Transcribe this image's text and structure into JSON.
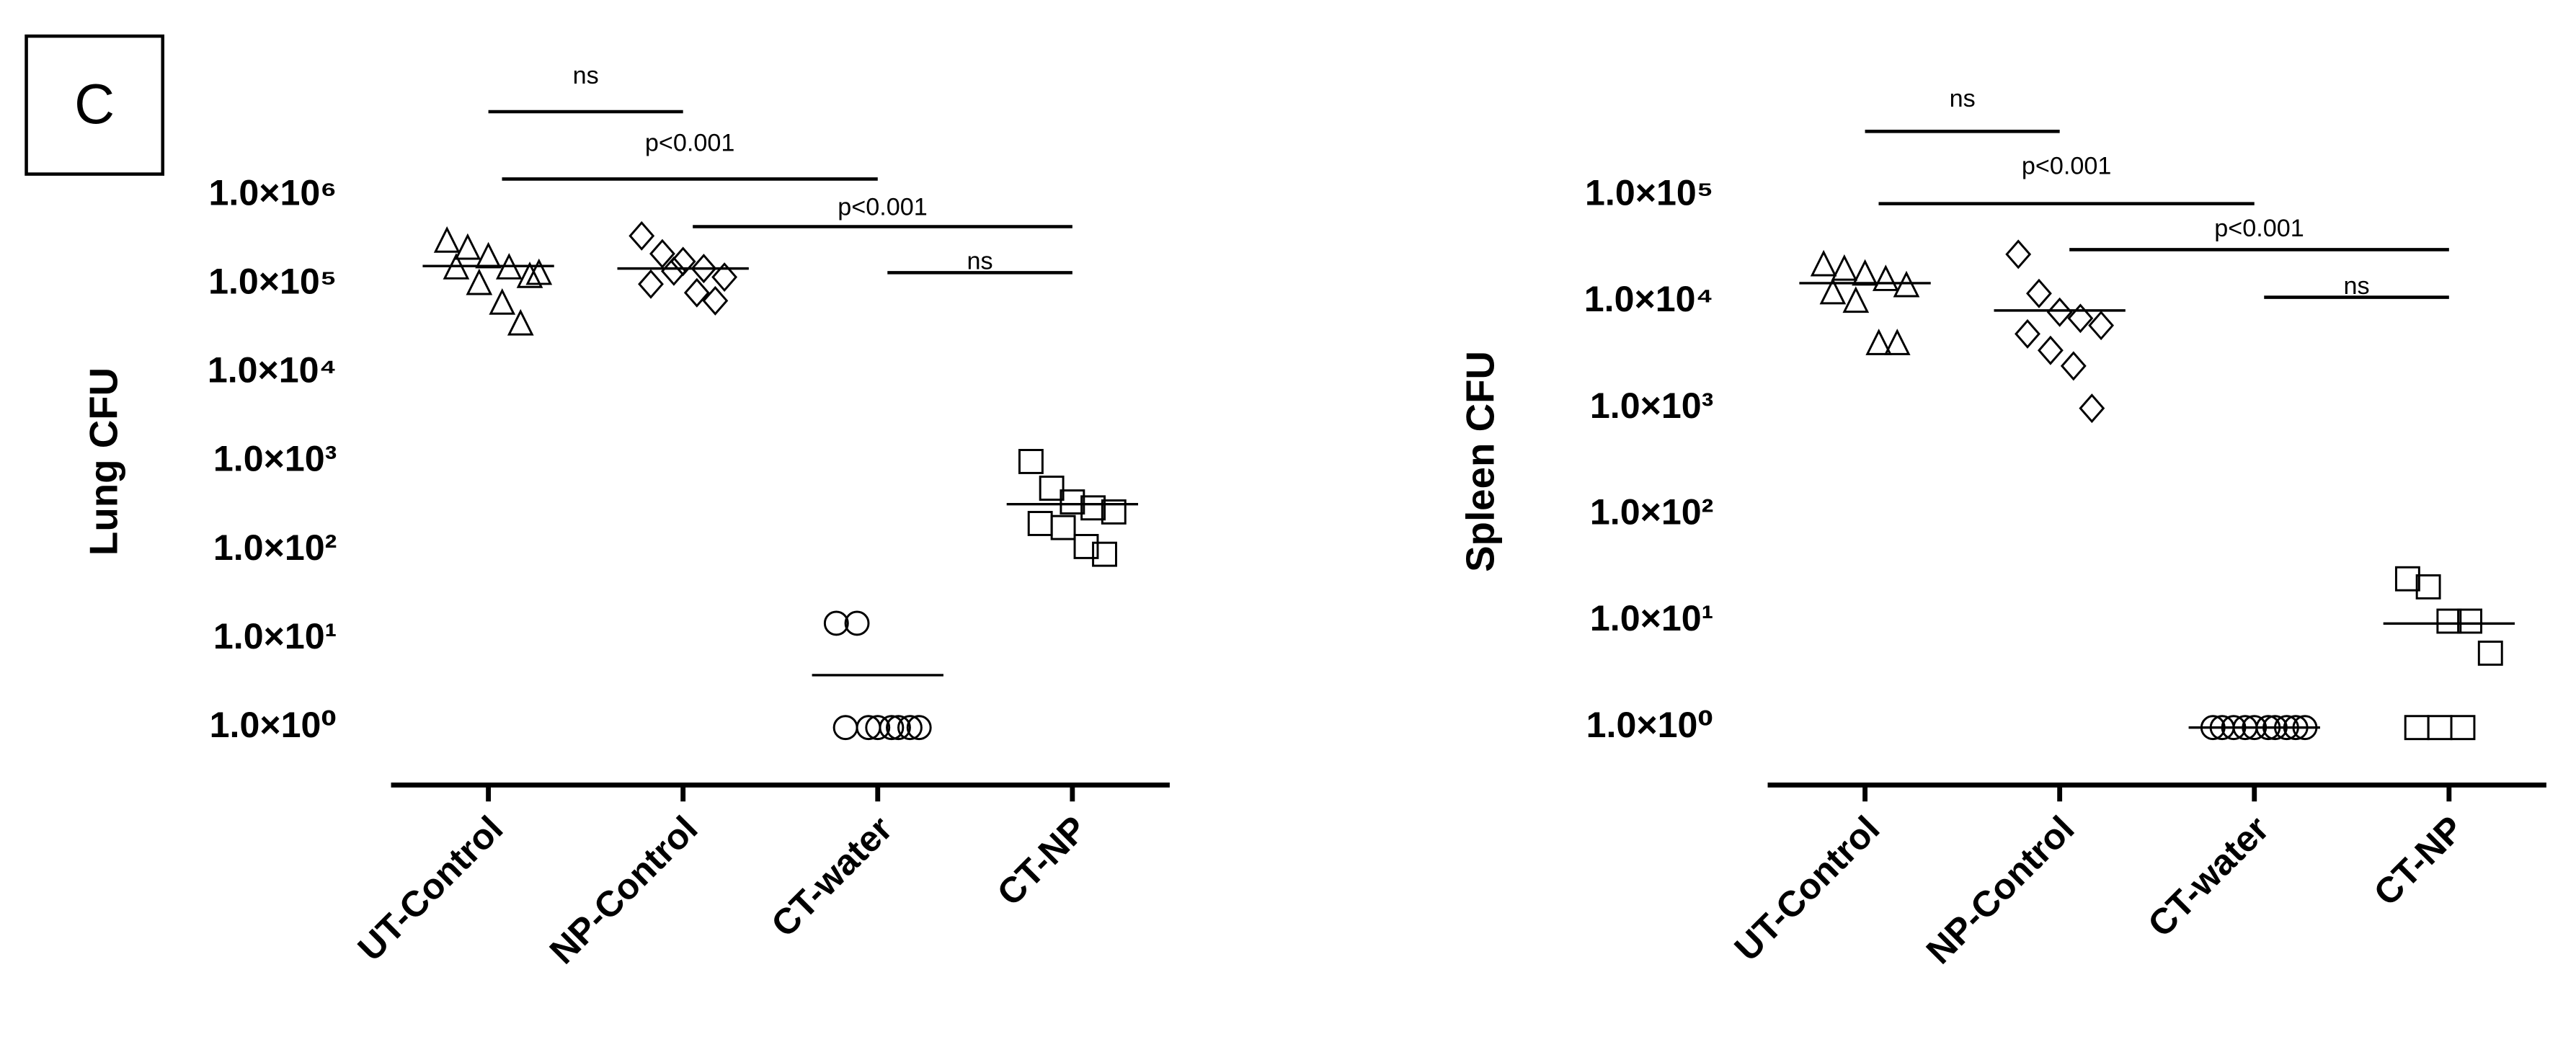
{
  "panel_label": "C",
  "chart_data": [
    {
      "type": "scatter",
      "log_scale": true,
      "y_label": "Lung CFU",
      "categories": [
        "UT-Control",
        "NP-Control",
        "CT-water",
        "CT-NP"
      ],
      "groups": [
        {
          "marker": "triangle",
          "values": [
            300000,
            250000,
            200000,
            150000,
            120000,
            150000,
            100000,
            60000,
            35000,
            130000
          ],
          "center": 160000
        },
        {
          "marker": "diamond",
          "values": [
            350000,
            220000,
            180000,
            150000,
            120000,
            100000,
            140000,
            80000,
            65000
          ],
          "center": 150000
        },
        {
          "marker": "circle",
          "values": [
            15,
            15,
            1,
            1,
            1,
            1,
            1,
            1,
            1
          ],
          "center": 3.9
        },
        {
          "marker": "square",
          "values": [
            1000,
            500,
            350,
            300,
            270,
            200,
            180,
            110,
            90
          ],
          "center": 330
        }
      ],
      "annotations": [
        "ns",
        "p<0.001",
        "p<0.001",
        "ns"
      ],
      "ylim": [
        1,
        1000000
      ],
      "yticks": [
        {
          "value": 1,
          "label": "1.0×10⁰"
        },
        {
          "value": 10,
          "label": "1.0×10¹"
        },
        {
          "value": 100,
          "label": "1.0×10²"
        },
        {
          "value": 1000,
          "label": "1.0×10³"
        },
        {
          "value": 10000,
          "label": "1.0×10⁴"
        },
        {
          "value": 100000,
          "label": "1.0×10⁵"
        },
        {
          "value": 1000000,
          "label": "1.0×10⁶"
        }
      ]
    },
    {
      "type": "scatter",
      "log_scale": true,
      "y_label": "Spleen CFU",
      "categories": [
        "UT-Control",
        "NP-Control",
        "CT-water",
        "CT-NP"
      ],
      "groups": [
        {
          "marker": "triangle",
          "values": [
            22000,
            20000,
            18000,
            16000,
            14000,
            12000,
            10000,
            4000,
            4000
          ],
          "center": 15000
        },
        {
          "marker": "diamond",
          "values": [
            28000,
            12000,
            8000,
            7000,
            6000,
            5000,
            3500,
            2500,
            1000
          ],
          "center": 8300
        },
        {
          "marker": "circle",
          "values": [
            1,
            1,
            1,
            1,
            1,
            1,
            1,
            1,
            1,
            1
          ],
          "center": 1
        },
        {
          "marker": "square",
          "values": [
            25,
            21,
            10,
            10,
            5,
            1,
            1,
            1
          ],
          "center": 9.5
        }
      ],
      "annotations": [
        "ns",
        "p<0.001",
        "p<0.001",
        "ns"
      ],
      "ylim": [
        1,
        100000
      ],
      "yticks": [
        {
          "value": 1,
          "label": "1.0×10⁰"
        },
        {
          "value": 10,
          "label": "1.0×10¹"
        },
        {
          "value": 100,
          "label": "1.0×10²"
        },
        {
          "value": 1000,
          "label": "1.0×10³"
        },
        {
          "value": 10000,
          "label": "1.0×10⁴"
        },
        {
          "value": 100000,
          "label": "1.0×10⁵"
        }
      ]
    }
  ]
}
